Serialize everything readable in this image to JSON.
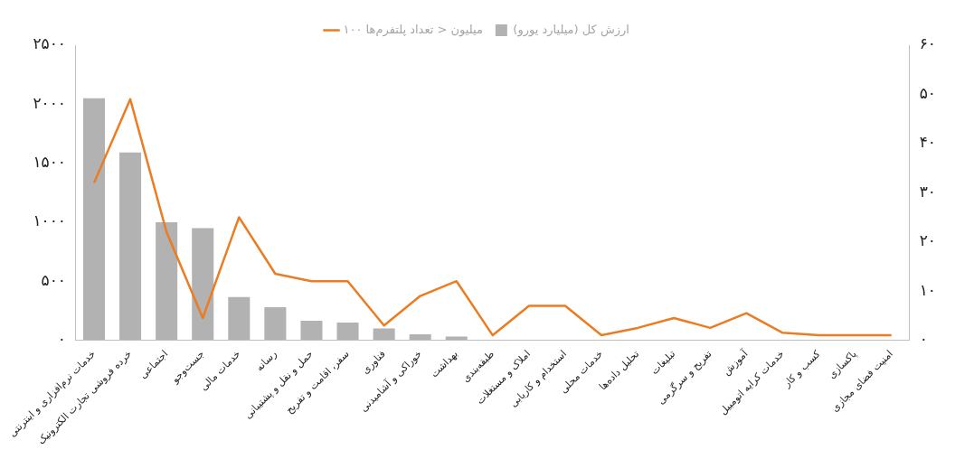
{
  "chart_data": {
    "type": "bar",
    "categories": [
      "خدمات نرم‌افزاری و اینترنتی",
      "خرده فروشی تجارت الکترونیک",
      "اجتماعی",
      "جست‌وجو",
      "خدمات مالی",
      "رسانه",
      "حمل و نقل و پشتیبانی",
      "سفر، اقامت و تفریح",
      "فناوری",
      "خوراکی و آشامیدنی",
      "بهداشت",
      "طبقه‌بندی",
      "املاک و مستغلات",
      "استخدام و کاریابی",
      "خدمات محلی",
      "تحلیل داده‌ها",
      "تبلیغات",
      "تفریح و سرگرمی",
      "آموزش",
      "خدمات کرایه اتومبیل",
      "کسب و کار",
      "پاکسازی",
      "امنیت فضای مجازی"
    ],
    "series": [
      {
        "name": "ارزش کل (میلیارد یورو)",
        "color": "#b2b2b2",
        "values": [
          2050,
          1590,
          1000,
          950,
          365,
          280,
          165,
          150,
          100,
          50,
          30,
          0,
          0,
          0,
          0,
          0,
          0,
          0,
          0,
          0,
          0,
          0,
          0
        ]
      },
      {
        "name": "۱۰۰ میلیون < تعداد پلتفرم‌ها",
        "type": "line",
        "axis": "y2",
        "color": "#ec7c22",
        "values": [
          32,
          49,
          22,
          4.5,
          25,
          13.5,
          12,
          12,
          3,
          9,
          12,
          1,
          7,
          7,
          1,
          2.5,
          4.5,
          2.5,
          5.5,
          1.5,
          1,
          1,
          1
        ]
      }
    ],
    "ylim": [
      0,
      2500
    ],
    "yticks": [
      {
        "value": 0,
        "label": "۰"
      },
      {
        "value": 500,
        "label": "۵۰۰"
      },
      {
        "value": 1000,
        "label": "۱۰۰۰"
      },
      {
        "value": 1500,
        "label": "۱۵۰۰"
      },
      {
        "value": 2000,
        "label": "۲۰۰۰"
      },
      {
        "value": 2500,
        "label": "۲۵۰۰"
      }
    ],
    "y2lim": [
      0,
      60
    ],
    "y2ticks": [
      {
        "value": 0,
        "label": "۰"
      },
      {
        "value": 10,
        "label": "۱۰"
      },
      {
        "value": 20,
        "label": "۲۰"
      },
      {
        "value": 30,
        "label": "۳۰"
      },
      {
        "value": 40,
        "label": "۴۰"
      },
      {
        "value": 50,
        "label": "۵۰"
      },
      {
        "value": 60,
        "label": "۶۰"
      }
    ],
    "legend": "top",
    "grid": false,
    "marker": "none",
    "line_style": "solid"
  }
}
